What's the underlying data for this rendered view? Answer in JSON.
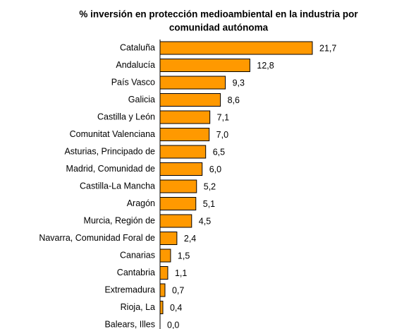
{
  "chart_data": {
    "type": "bar",
    "orientation": "horizontal",
    "title": [
      "% inversión en protección medioambiental en la industria por",
      "comunidad autónoma"
    ],
    "categories": [
      "Cataluña",
      "Andalucía",
      "País Vasco",
      "Galicia",
      "Castilla y León",
      "Comunitat Valenciana",
      "Asturias, Principado de",
      "Madrid, Comunidad de",
      "Castilla-La Mancha",
      "Aragón",
      "Murcia, Región de",
      "Navarra, Comunidad Foral de",
      "Canarias",
      "Cantabria",
      "Extremadura",
      "Rioja, La",
      "Balears, Illes"
    ],
    "values": [
      21.7,
      12.8,
      9.3,
      8.6,
      7.1,
      7.0,
      6.5,
      6.0,
      5.2,
      5.1,
      4.5,
      2.4,
      1.5,
      1.1,
      0.7,
      0.4,
      0.0
    ],
    "value_labels": [
      "21,7",
      "12,8",
      "9,3",
      "8,6",
      "7,1",
      "7,0",
      "6,5",
      "6,0",
      "5,2",
      "5,1",
      "4,5",
      "2,4",
      "1,5",
      "1,1",
      "0,7",
      "0,4",
      "0,0"
    ],
    "color": "#ff9900"
  }
}
